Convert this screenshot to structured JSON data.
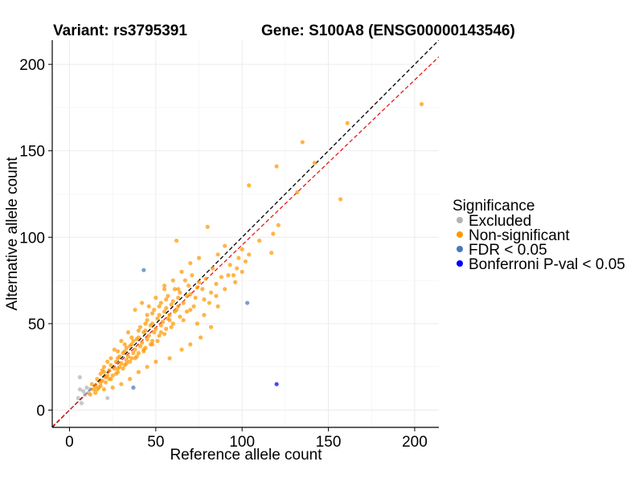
{
  "chart_data": {
    "type": "scatter",
    "title_left": "Variant: rs3795391",
    "title_right": "Gene: S100A8 (ENSG00000143546)",
    "xlabel": "Reference allele count",
    "ylabel": "Alternative allele count",
    "xlim": [
      -10,
      214
    ],
    "ylim": [
      -10,
      214
    ],
    "x_ticks": [
      0,
      50,
      100,
      150,
      200
    ],
    "y_ticks": [
      0,
      50,
      100,
      150,
      200
    ],
    "grid": true,
    "reference_lines": [
      {
        "name": "identity",
        "color": "#000000",
        "style": "dashed",
        "slope": 1.0,
        "intercept": 0
      },
      {
        "name": "fit",
        "color": "#e41a1c",
        "style": "dashed",
        "slope": 0.955,
        "intercept": 0
      }
    ],
    "legend": {
      "title": "Significance",
      "placement": "right",
      "items": [
        {
          "label": "Excluded",
          "color": "#b3b3b3"
        },
        {
          "label": "Non-significant",
          "color": "#ff9900"
        },
        {
          "label": "FDR < 0.05",
          "color": "#4a78b5"
        },
        {
          "label": "Bonferroni P-val < 0.05",
          "color": "#0000ff"
        }
      ]
    },
    "series": [
      {
        "name": "Excluded",
        "color": "#b3b3b3",
        "points": [
          [
            5,
            7
          ],
          [
            6,
            19
          ],
          [
            7,
            4
          ],
          [
            8,
            11
          ],
          [
            9,
            9
          ],
          [
            10,
            13
          ],
          [
            11,
            10
          ],
          [
            12,
            12
          ],
          [
            22,
            7
          ],
          [
            6,
            12
          ]
        ]
      },
      {
        "name": "Non-significant",
        "color": "#ff9900",
        "points": [
          [
            204,
            177
          ],
          [
            161,
            166
          ],
          [
            142,
            143
          ],
          [
            135,
            155
          ],
          [
            120,
            141
          ],
          [
            157,
            122
          ],
          [
            132,
            126
          ],
          [
            104,
            130
          ],
          [
            121,
            107
          ],
          [
            118,
            102
          ],
          [
            117,
            91
          ],
          [
            110,
            98
          ],
          [
            104,
            90
          ],
          [
            100,
            93
          ],
          [
            95,
            78
          ],
          [
            88,
            77
          ],
          [
            85,
            73
          ],
          [
            80,
            106
          ],
          [
            90,
            95
          ],
          [
            62,
            98
          ],
          [
            75,
            88
          ],
          [
            70,
            85
          ],
          [
            65,
            80
          ],
          [
            60,
            75
          ],
          [
            55,
            70
          ],
          [
            68,
            66
          ],
          [
            72,
            60
          ],
          [
            78,
            55
          ],
          [
            82,
            48
          ],
          [
            76,
            42
          ],
          [
            70,
            38
          ],
          [
            65,
            35
          ],
          [
            58,
            30
          ],
          [
            50,
            28
          ],
          [
            45,
            25
          ],
          [
            40,
            22
          ],
          [
            35,
            18
          ],
          [
            30,
            15
          ],
          [
            25,
            13
          ],
          [
            20,
            12
          ],
          [
            15,
            10
          ],
          [
            12,
            9
          ],
          [
            18,
            16
          ],
          [
            22,
            20
          ],
          [
            26,
            24
          ],
          [
            30,
            27
          ],
          [
            34,
            31
          ],
          [
            38,
            35
          ],
          [
            42,
            39
          ],
          [
            46,
            43
          ],
          [
            50,
            47
          ],
          [
            54,
            51
          ],
          [
            58,
            55
          ],
          [
            62,
            58
          ],
          [
            66,
            62
          ],
          [
            70,
            67
          ],
          [
            74,
            71
          ],
          [
            20,
            22
          ],
          [
            24,
            26
          ],
          [
            28,
            30
          ],
          [
            32,
            34
          ],
          [
            36,
            38
          ],
          [
            40,
            42
          ],
          [
            44,
            46
          ],
          [
            48,
            50
          ],
          [
            52,
            55
          ],
          [
            56,
            59
          ],
          [
            60,
            63
          ],
          [
            64,
            68
          ],
          [
            16,
            18
          ],
          [
            18,
            21
          ],
          [
            21,
            19
          ],
          [
            23,
            23
          ],
          [
            27,
            28
          ],
          [
            29,
            25
          ],
          [
            31,
            33
          ],
          [
            33,
            29
          ],
          [
            35,
            37
          ],
          [
            37,
            33
          ],
          [
            39,
            41
          ],
          [
            41,
            37
          ],
          [
            43,
            45
          ],
          [
            45,
            41
          ],
          [
            47,
            49
          ],
          [
            49,
            45
          ],
          [
            51,
            53
          ],
          [
            53,
            49
          ],
          [
            55,
            57
          ],
          [
            57,
            53
          ],
          [
            59,
            61
          ],
          [
            61,
            57
          ],
          [
            63,
            65
          ],
          [
            15,
            14
          ],
          [
            17,
            13
          ],
          [
            19,
            17
          ],
          [
            25,
            20
          ],
          [
            28,
            22
          ],
          [
            32,
            26
          ],
          [
            36,
            30
          ],
          [
            40,
            33
          ],
          [
            44,
            36
          ],
          [
            48,
            40
          ],
          [
            52,
            43
          ],
          [
            56,
            47
          ],
          [
            60,
            50
          ],
          [
            64,
            54
          ],
          [
            68,
            57
          ],
          [
            24,
            30
          ],
          [
            28,
            34
          ],
          [
            32,
            38
          ],
          [
            36,
            42
          ],
          [
            40,
            46
          ],
          [
            44,
            50
          ],
          [
            48,
            56
          ],
          [
            52,
            60
          ],
          [
            56,
            64
          ],
          [
            38,
            58
          ],
          [
            42,
            62
          ],
          [
            46,
            60
          ],
          [
            30,
            40
          ],
          [
            26,
            35
          ],
          [
            22,
            28
          ],
          [
            20,
            25
          ],
          [
            34,
            45
          ],
          [
            45,
            55
          ],
          [
            50,
            65
          ],
          [
            55,
            72
          ],
          [
            63,
            70
          ],
          [
            67,
            75
          ],
          [
            71,
            78
          ],
          [
            73,
            65
          ],
          [
            77,
            70
          ],
          [
            81,
            62
          ],
          [
            85,
            66
          ],
          [
            90,
            70
          ],
          [
            96,
            74
          ],
          [
            100,
            80
          ],
          [
            93,
            84
          ],
          [
            98,
            88
          ],
          [
            86,
            90
          ],
          [
            83,
            82
          ],
          [
            79,
            76
          ],
          [
            75,
            74
          ],
          [
            69,
            72
          ],
          [
            63,
            60
          ],
          [
            58,
            52
          ],
          [
            53,
            45
          ],
          [
            48,
            38
          ],
          [
            43,
            34
          ],
          [
            38,
            30
          ],
          [
            33,
            27
          ],
          [
            28,
            24
          ],
          [
            23,
            18
          ],
          [
            18,
            14
          ],
          [
            14,
            12
          ],
          [
            13,
            15
          ],
          [
            16,
            12
          ],
          [
            19,
            23
          ],
          [
            21,
            16
          ],
          [
            24,
            18
          ],
          [
            27,
            21
          ],
          [
            29,
            31
          ],
          [
            31,
            24
          ],
          [
            33,
            36
          ],
          [
            35,
            28
          ],
          [
            37,
            40
          ],
          [
            39,
            31
          ],
          [
            41,
            48
          ],
          [
            43,
            35
          ],
          [
            45,
            52
          ],
          [
            47,
            38
          ],
          [
            49,
            58
          ],
          [
            51,
            40
          ],
          [
            53,
            62
          ],
          [
            55,
            44
          ],
          [
            57,
            66
          ],
          [
            59,
            48
          ],
          [
            61,
            70
          ],
          [
            66,
            52
          ],
          [
            70,
            58
          ],
          [
            74,
            50
          ],
          [
            78,
            64
          ],
          [
            82,
            68
          ],
          [
            86,
            60
          ],
          [
            92,
            78
          ],
          [
            97,
            82
          ],
          [
            102,
            86
          ]
        ]
      },
      {
        "name": "FDR < 0.05",
        "color": "#4a78b5",
        "points": [
          [
            43,
            81
          ],
          [
            103,
            62
          ],
          [
            37,
            13
          ]
        ]
      },
      {
        "name": "Bonferroni P-val < 0.05",
        "color": "#0000ff",
        "points": [
          [
            120,
            15
          ]
        ]
      }
    ]
  }
}
